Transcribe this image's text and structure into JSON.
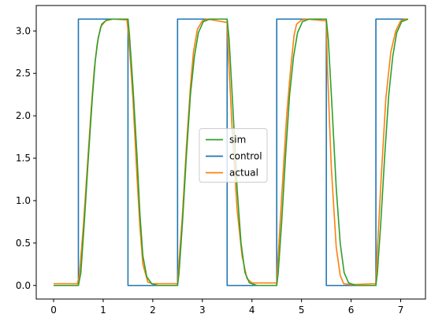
{
  "chart_data": {
    "type": "line",
    "title": "",
    "xlabel": "",
    "ylabel": "",
    "xlim": [
      -0.35,
      7.5
    ],
    "ylim": [
      -0.16,
      3.3
    ],
    "xticks": [
      0,
      1,
      2,
      3,
      4,
      5,
      6,
      7
    ],
    "yticks": [
      0.0,
      0.5,
      1.0,
      1.5,
      2.0,
      2.5,
      3.0
    ],
    "xtick_labels": [
      "0",
      "1",
      "2",
      "3",
      "4",
      "5",
      "6",
      "7"
    ],
    "ytick_labels": [
      "0.0",
      "0.5",
      "1.0",
      "1.5",
      "2.0",
      "2.5",
      "3.0"
    ],
    "grid": false,
    "legend_position": "center",
    "legend": [
      "sim",
      "control",
      "actual"
    ],
    "series": [
      {
        "name": "control",
        "color": "#1f77b4",
        "x": [
          0.0,
          0.5,
          0.5,
          1.5,
          1.5,
          2.5,
          2.5,
          3.5,
          3.5,
          4.5,
          4.5,
          5.5,
          5.5,
          6.5,
          6.5,
          7.15
        ],
        "y": [
          0.0,
          0.0,
          3.14,
          3.14,
          0.0,
          0.0,
          3.14,
          3.14,
          0.0,
          0.0,
          3.14,
          3.14,
          0.0,
          0.0,
          3.14,
          3.14
        ]
      },
      {
        "name": "actual",
        "color": "#ff7f0e",
        "x": [
          0.0,
          0.48,
          0.52,
          0.6,
          0.68,
          0.76,
          0.82,
          0.88,
          0.95,
          1.05,
          1.2,
          1.48,
          1.52,
          1.6,
          1.68,
          1.74,
          1.8,
          1.9,
          2.0,
          2.5,
          2.52,
          2.6,
          2.68,
          2.76,
          2.82,
          2.9,
          3.0,
          3.1,
          3.5,
          3.52,
          3.6,
          3.7,
          3.8,
          3.9,
          4.0,
          4.1,
          4.5,
          4.52,
          4.6,
          4.7,
          4.78,
          4.85,
          4.9,
          5.0,
          5.1,
          5.5,
          5.52,
          5.6,
          5.7,
          5.78,
          5.85,
          6.0,
          6.5,
          6.52,
          6.6,
          6.7,
          6.8,
          6.9,
          7.0,
          7.1,
          7.15
        ],
        "y": [
          0.02,
          0.02,
          0.12,
          0.7,
          1.4,
          2.1,
          2.55,
          2.85,
          3.05,
          3.12,
          3.14,
          3.13,
          2.9,
          2.2,
          1.3,
          0.7,
          0.25,
          0.04,
          0.02,
          0.02,
          0.2,
          0.85,
          1.65,
          2.35,
          2.75,
          3.02,
          3.12,
          3.14,
          3.1,
          2.8,
          1.85,
          0.9,
          0.35,
          0.08,
          0.03,
          0.03,
          0.03,
          0.25,
          1.05,
          2.0,
          2.55,
          2.95,
          3.08,
          3.13,
          3.14,
          3.12,
          2.6,
          1.4,
          0.45,
          0.12,
          0.02,
          0.01,
          0.02,
          0.3,
          1.2,
          2.2,
          2.75,
          3.0,
          3.12,
          3.14,
          3.14
        ]
      },
      {
        "name": "sim",
        "color": "#2ca02c",
        "x": [
          0.0,
          0.5,
          0.55,
          0.62,
          0.7,
          0.78,
          0.84,
          0.9,
          0.97,
          1.07,
          1.2,
          1.5,
          1.53,
          1.6,
          1.68,
          1.74,
          1.8,
          1.88,
          1.98,
          2.1,
          2.5,
          2.53,
          2.6,
          2.68,
          2.76,
          2.84,
          2.92,
          3.02,
          3.15,
          3.5,
          3.54,
          3.62,
          3.7,
          3.78,
          3.86,
          3.95,
          4.1,
          4.5,
          4.53,
          4.6,
          4.68,
          4.76,
          4.84,
          4.92,
          5.02,
          5.15,
          5.5,
          5.54,
          5.62,
          5.7,
          5.78,
          5.86,
          5.95,
          6.1,
          6.5,
          6.53,
          6.6,
          6.68,
          6.76,
          6.84,
          6.92,
          7.02,
          7.15
        ],
        "y": [
          0.0,
          0.0,
          0.15,
          0.75,
          1.5,
          2.2,
          2.65,
          2.92,
          3.08,
          3.13,
          3.14,
          3.14,
          2.95,
          2.35,
          1.55,
          0.85,
          0.35,
          0.1,
          0.02,
          0.0,
          0.0,
          0.15,
          0.75,
          1.55,
          2.25,
          2.7,
          2.98,
          3.11,
          3.14,
          3.14,
          2.9,
          2.05,
          1.15,
          0.5,
          0.15,
          0.03,
          0.0,
          0.0,
          0.15,
          0.75,
          1.55,
          2.25,
          2.7,
          2.98,
          3.11,
          3.14,
          3.14,
          2.9,
          2.05,
          1.15,
          0.5,
          0.15,
          0.03,
          0.0,
          0.0,
          0.15,
          0.75,
          1.55,
          2.25,
          2.7,
          2.98,
          3.11,
          3.14
        ]
      }
    ]
  }
}
